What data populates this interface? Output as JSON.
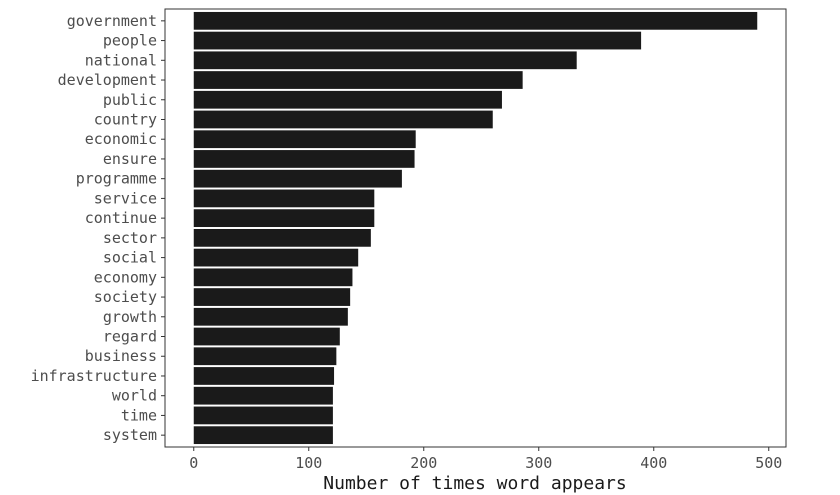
{
  "chart_data": {
    "type": "bar",
    "orientation": "horizontal",
    "title": "",
    "xlabel": "Number of times word appears",
    "ylabel": "",
    "xlim": [
      -25,
      515
    ],
    "xticks": [
      0,
      100,
      200,
      300,
      400,
      500
    ],
    "grid": false,
    "bar_color": "#1a1a1a",
    "categories": [
      "government",
      "people",
      "national",
      "development",
      "public",
      "country",
      "economic",
      "ensure",
      "programme",
      "service",
      "continue",
      "sector",
      "social",
      "economy",
      "society",
      "growth",
      "regard",
      "business",
      "infrastructure",
      "world",
      "time",
      "system"
    ],
    "values": [
      490,
      389,
      333,
      286,
      268,
      260,
      193,
      192,
      181,
      157,
      157,
      154,
      143,
      138,
      136,
      134,
      127,
      124,
      122,
      121,
      121,
      121
    ]
  }
}
